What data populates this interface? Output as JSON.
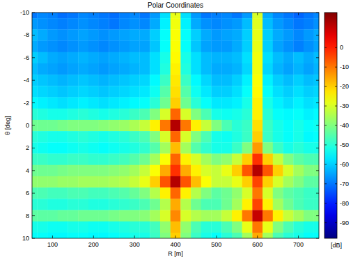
{
  "chart_data": {
    "type": "heatmap",
    "title": "Polar Coordinates",
    "x_label": "R [m]",
    "y_label": "θ [deg]",
    "x": [
      50,
      75,
      100,
      125,
      150,
      175,
      200,
      225,
      250,
      275,
      300,
      325,
      350,
      375,
      400,
      425,
      450,
      475,
      500,
      525,
      550,
      575,
      600,
      625,
      650,
      675,
      700,
      725,
      750
    ],
    "y": [
      -10,
      -9,
      -8,
      -7,
      -6,
      -5,
      -4,
      -3,
      -2,
      -1,
      0,
      1,
      2,
      3,
      4,
      5,
      6,
      7,
      8,
      9,
      10
    ],
    "values": [
      [
        -70,
        -68,
        -69,
        -71,
        -70,
        -68,
        -69,
        -70,
        -71,
        -69,
        -68,
        -70,
        -66,
        -58,
        -28,
        -58,
        -66,
        -70,
        -69,
        -68,
        -70,
        -66,
        -30,
        -64,
        -68,
        -70,
        -72,
        -70,
        -68
      ],
      [
        -66,
        -67,
        -68,
        -69,
        -68,
        -67,
        -68,
        -69,
        -70,
        -68,
        -67,
        -68,
        -64,
        -56,
        -27,
        -56,
        -64,
        -67,
        -68,
        -67,
        -66,
        -62,
        -29,
        -62,
        -66,
        -68,
        -70,
        -69,
        -67
      ],
      [
        -62,
        -64,
        -66,
        -67,
        -66,
        -65,
        -66,
        -67,
        -66,
        -65,
        -64,
        -64,
        -60,
        -54,
        -26,
        -54,
        -60,
        -64,
        -66,
        -65,
        -64,
        -60,
        -28,
        -60,
        -64,
        -66,
        -68,
        -66,
        -64
      ],
      [
        -64,
        -66,
        -67,
        -68,
        -67,
        -66,
        -67,
        -68,
        -67,
        -66,
        -65,
        -65,
        -61,
        -54,
        -26,
        -54,
        -61,
        -65,
        -66,
        -66,
        -64,
        -60,
        -28,
        -60,
        -65,
        -67,
        -69,
        -67,
        -65
      ],
      [
        -60,
        -62,
        -64,
        -65,
        -64,
        -63,
        -64,
        -65,
        -64,
        -63,
        -62,
        -62,
        -58,
        -52,
        -25,
        -52,
        -58,
        -62,
        -63,
        -63,
        -62,
        -58,
        -27,
        -58,
        -62,
        -64,
        -62,
        -64,
        -62
      ],
      [
        -62,
        -64,
        -65,
        -66,
        -65,
        -64,
        -65,
        -66,
        -65,
        -64,
        -63,
        -62,
        -58,
        -51,
        -24,
        -51,
        -58,
        -62,
        -64,
        -64,
        -63,
        -59,
        -27,
        -59,
        -63,
        -65,
        -63,
        -65,
        -63
      ],
      [
        -60,
        -61,
        -62,
        -63,
        -62,
        -61,
        -62,
        -63,
        -62,
        -61,
        -60,
        -59,
        -55,
        -48,
        -23,
        -48,
        -55,
        -59,
        -62,
        -62,
        -60,
        -56,
        -26,
        -56,
        -60,
        -62,
        -60,
        -62,
        -61
      ],
      [
        -58,
        -59,
        -60,
        -61,
        -60,
        -59,
        -60,
        -61,
        -60,
        -59,
        -58,
        -57,
        -53,
        -45,
        -22,
        -45,
        -53,
        -57,
        -60,
        -60,
        -58,
        -54,
        -25,
        -54,
        -58,
        -60,
        -58,
        -60,
        -59
      ],
      [
        -55,
        -56,
        -57,
        -58,
        -57,
        -56,
        -57,
        -58,
        -57,
        -56,
        -55,
        -54,
        -50,
        -42,
        -20,
        -42,
        -50,
        -54,
        -57,
        -57,
        -56,
        -52,
        -24,
        -52,
        -56,
        -58,
        -56,
        -58,
        -57
      ],
      [
        -50,
        -51,
        -52,
        -52,
        -51,
        -50,
        -51,
        -52,
        -51,
        -50,
        -48,
        -46,
        -40,
        -30,
        -8,
        -30,
        -40,
        -46,
        -52,
        -53,
        -52,
        -50,
        -24,
        -50,
        -54,
        -55,
        -54,
        -56,
        -55
      ],
      [
        -42,
        -42,
        -42,
        -41,
        -40,
        -40,
        -40,
        -39,
        -38,
        -37,
        -35,
        -32,
        -24,
        -10,
        12,
        -10,
        -24,
        -32,
        -40,
        -46,
        -50,
        -48,
        -22,
        -48,
        -52,
        -54,
        -52,
        -54,
        -53
      ],
      [
        -50,
        -51,
        -52,
        -52,
        -51,
        -50,
        -51,
        -52,
        -51,
        -50,
        -48,
        -46,
        -40,
        -30,
        -8,
        -30,
        -40,
        -46,
        -52,
        -53,
        -51,
        -48,
        -20,
        -48,
        -52,
        -54,
        -52,
        -55,
        -54
      ],
      [
        -52,
        -53,
        -54,
        -54,
        -53,
        -52,
        -53,
        -54,
        -53,
        -52,
        -51,
        -49,
        -45,
        -36,
        -18,
        -36,
        -45,
        -49,
        -52,
        -52,
        -48,
        -40,
        -14,
        -40,
        -48,
        -52,
        -50,
        -52,
        -52
      ],
      [
        -48,
        -48,
        -49,
        -49,
        -48,
        -48,
        -49,
        -49,
        -48,
        -47,
        -45,
        -42,
        -36,
        -26,
        -8,
        -24,
        -30,
        -36,
        -40,
        -38,
        -32,
        -20,
        -2,
        -20,
        -32,
        -40,
        -44,
        -46,
        -46
      ],
      [
        -42,
        -42,
        -42,
        -41,
        -40,
        -40,
        -40,
        -40,
        -39,
        -38,
        -36,
        -32,
        -26,
        -16,
        -2,
        -16,
        -24,
        -30,
        -32,
        -28,
        -20,
        -6,
        12,
        -6,
        -20,
        -30,
        -36,
        -40,
        -40
      ],
      [
        -38,
        -38,
        -38,
        -37,
        -37,
        -36,
        -36,
        -36,
        -35,
        -34,
        -32,
        -28,
        -20,
        -6,
        12,
        -6,
        -18,
        -26,
        -32,
        -32,
        -28,
        -20,
        -4,
        -20,
        -30,
        -36,
        -40,
        -44,
        -44
      ],
      [
        -46,
        -46,
        -47,
        -47,
        -46,
        -46,
        -47,
        -47,
        -46,
        -45,
        -43,
        -40,
        -34,
        -24,
        -8,
        -24,
        -34,
        -40,
        -44,
        -42,
        -38,
        -30,
        -10,
        -30,
        -40,
        -44,
        -46,
        -48,
        -48
      ],
      [
        -50,
        -50,
        -51,
        -51,
        -50,
        -50,
        -51,
        -51,
        -50,
        -49,
        -48,
        -46,
        -42,
        -34,
        -16,
        -34,
        -42,
        -46,
        -46,
        -42,
        -36,
        -24,
        -4,
        -24,
        -36,
        -42,
        -46,
        -48,
        -48
      ],
      [
        -44,
        -44,
        -44,
        -43,
        -43,
        -42,
        -42,
        -42,
        -41,
        -40,
        -40,
        -39,
        -36,
        -30,
        -12,
        -30,
        -34,
        -36,
        -36,
        -32,
        -24,
        -10,
        10,
        -10,
        -24,
        -32,
        -36,
        -40,
        -40
      ],
      [
        -52,
        -52,
        -53,
        -53,
        -52,
        -52,
        -53,
        -53,
        -52,
        -51,
        -50,
        -50,
        -47,
        -38,
        -18,
        -38,
        -46,
        -50,
        -50,
        -46,
        -40,
        -28,
        -10,
        -28,
        -40,
        -46,
        -50,
        -52,
        -52
      ],
      [
        -54,
        -54,
        -55,
        -55,
        -54,
        -54,
        -55,
        -55,
        -54,
        -53,
        -52,
        -52,
        -48,
        -40,
        -20,
        -40,
        -48,
        -52,
        -54,
        -50,
        -46,
        -36,
        -16,
        -36,
        -46,
        -50,
        -52,
        -54,
        -54
      ]
    ],
    "xlim": [
      50,
      750
    ],
    "ylim": [
      10,
      -10
    ],
    "xticks": [
      100,
      200,
      300,
      400,
      500,
      600,
      700
    ],
    "yticks": [
      -10,
      -8,
      -6,
      -4,
      -2,
      0,
      2,
      4,
      6,
      8,
      10
    ],
    "colorbar": {
      "range": [
        -98,
        18
      ],
      "ticks": [
        0,
        -10,
        -20,
        -30,
        -40,
        -50,
        -60,
        -70,
        -80,
        -90
      ],
      "label": "[dB]"
    }
  }
}
